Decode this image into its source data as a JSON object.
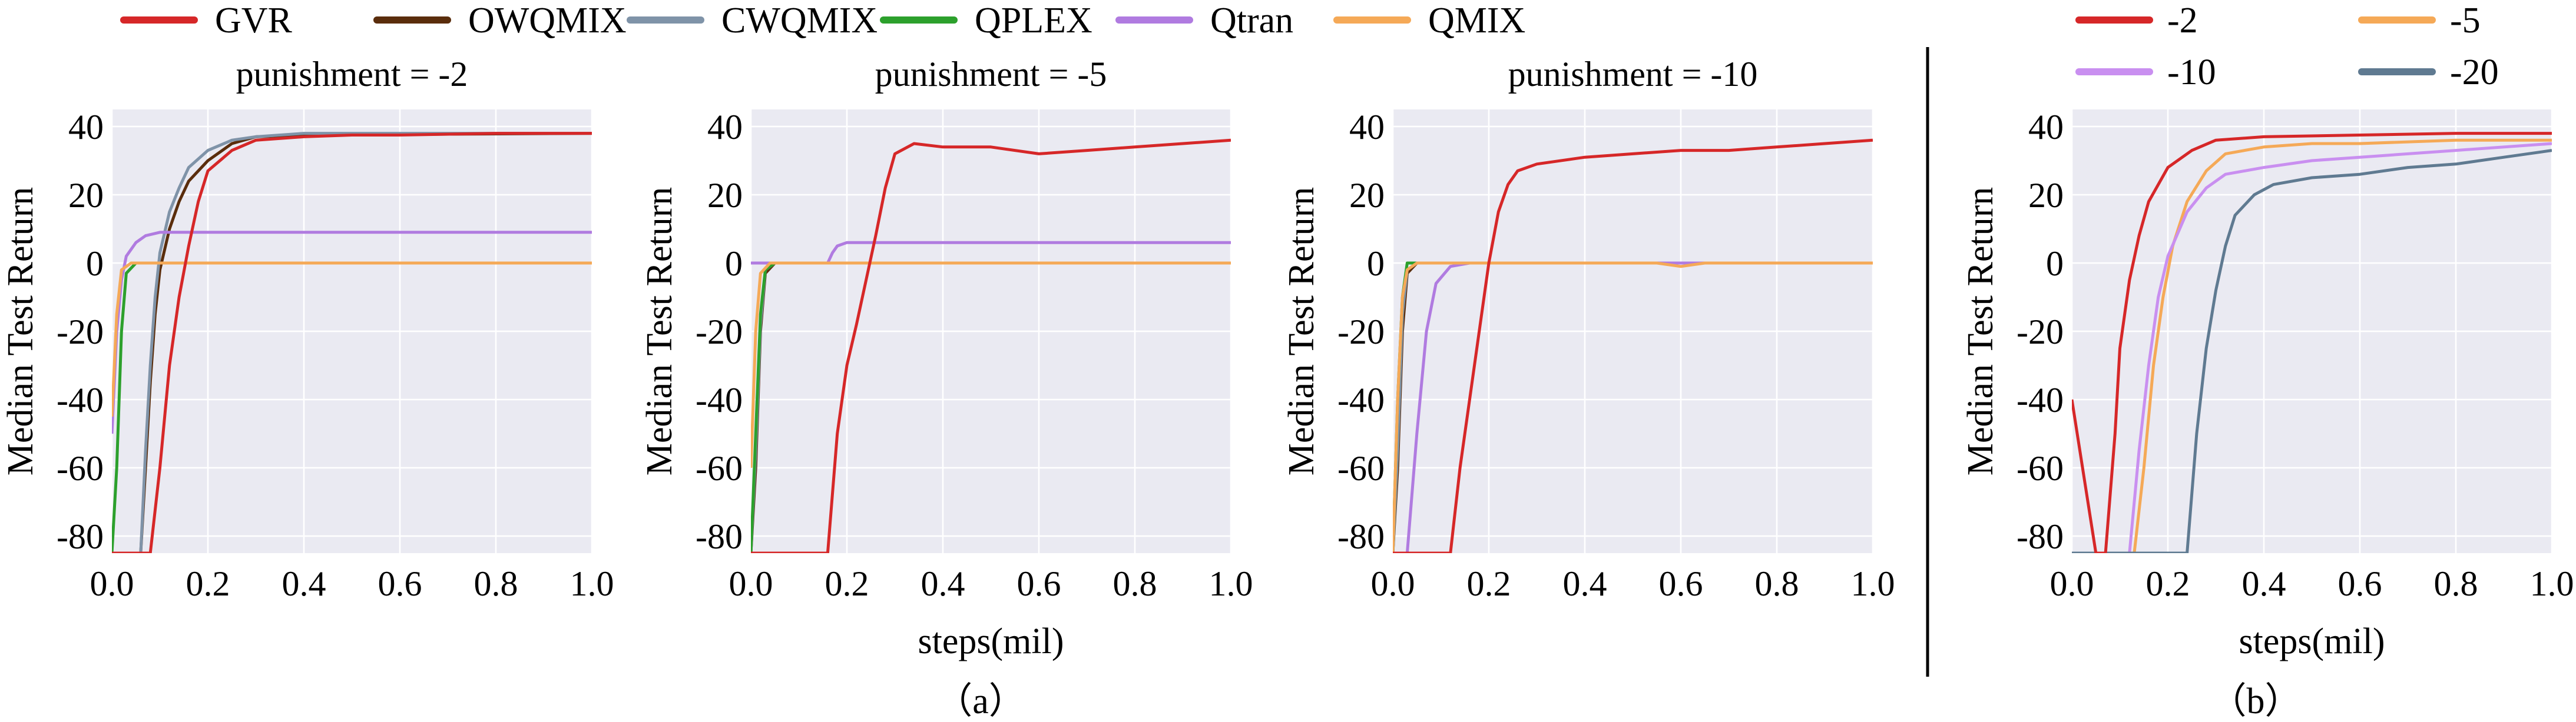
{
  "legend_a": [
    {
      "name": "GVR",
      "color": "#d62728"
    },
    {
      "name": "OWQMIX",
      "color": "#5a2d0c"
    },
    {
      "name": "CWQMIX",
      "color": "#7f93a8"
    },
    {
      "name": "QPLEX",
      "color": "#2ca02c"
    },
    {
      "name": "Qtran",
      "color": "#b07be0"
    },
    {
      "name": "QMIX",
      "color": "#f5a957"
    }
  ],
  "legend_b": [
    {
      "name": "-2",
      "color": "#d62728"
    },
    {
      "name": "-5",
      "color": "#f5a957"
    },
    {
      "name": "-10",
      "color": "#c98ff0"
    },
    {
      "name": "-20",
      "color": "#5f7a91"
    }
  ],
  "captions": {
    "a": "（a）",
    "b": "（b）"
  },
  "chart_data": [
    {
      "type": "line",
      "title": "punishment = -2",
      "xlabel": "",
      "ylabel": "Median Test Return",
      "xlim": [
        0,
        1.0
      ],
      "ylim": [
        -85,
        45
      ],
      "xticks": [
        "0.0",
        "0.2",
        "0.4",
        "0.6",
        "0.8",
        "1.0"
      ],
      "yticks": [
        "-80",
        "-60",
        "-40",
        "-20",
        "0",
        "20",
        "40"
      ],
      "grid": true,
      "series": [
        {
          "name": "GVR",
          "x": [
            0,
            0.08,
            0.1,
            0.12,
            0.14,
            0.16,
            0.18,
            0.2,
            0.25,
            0.3,
            0.4,
            0.5,
            0.6,
            0.8,
            1.0
          ],
          "y": [
            -85,
            -85,
            -60,
            -30,
            -10,
            5,
            18,
            27,
            33,
            36,
            37,
            37.5,
            37.5,
            38,
            38
          ]
        },
        {
          "name": "OWQMIX",
          "x": [
            0,
            0.06,
            0.07,
            0.08,
            0.09,
            0.1,
            0.12,
            0.14,
            0.16,
            0.2,
            0.25,
            0.3,
            0.4,
            1.0
          ],
          "y": [
            -85,
            -85,
            -60,
            -35,
            -15,
            -2,
            10,
            18,
            24,
            30,
            35,
            37,
            37.5,
            38
          ]
        },
        {
          "name": "CWQMIX",
          "x": [
            0,
            0.06,
            0.07,
            0.08,
            0.09,
            0.1,
            0.12,
            0.14,
            0.16,
            0.2,
            0.25,
            0.3,
            0.4,
            1.0
          ],
          "y": [
            -85,
            -85,
            -55,
            -30,
            -10,
            3,
            15,
            22,
            28,
            33,
            36,
            37,
            38,
            38
          ]
        },
        {
          "name": "QPLEX",
          "x": [
            0,
            0.01,
            0.02,
            0.03,
            0.05,
            1.0
          ],
          "y": [
            -85,
            -60,
            -20,
            -3,
            0,
            0
          ]
        },
        {
          "name": "Qtran",
          "x": [
            0,
            0.01,
            0.02,
            0.03,
            0.05,
            0.07,
            0.1,
            1.0
          ],
          "y": [
            -50,
            -20,
            -5,
            2,
            6,
            8,
            9,
            9
          ]
        },
        {
          "name": "QMIX",
          "x": [
            0,
            0.01,
            0.02,
            0.04,
            1.0
          ],
          "y": [
            -45,
            -15,
            -2,
            0,
            0
          ]
        }
      ]
    },
    {
      "type": "line",
      "title": "punishment = -5",
      "xlabel": "steps(mil)",
      "ylabel": "Median Test Return",
      "xlim": [
        0,
        1.0
      ],
      "ylim": [
        -85,
        45
      ],
      "xticks": [
        "0.0",
        "0.2",
        "0.4",
        "0.6",
        "0.8",
        "1.0"
      ],
      "yticks": [
        "-80",
        "-60",
        "-40",
        "-20",
        "0",
        "20",
        "40"
      ],
      "grid": true,
      "series": [
        {
          "name": "GVR",
          "x": [
            0,
            0.16,
            0.18,
            0.2,
            0.22,
            0.24,
            0.26,
            0.28,
            0.3,
            0.34,
            0.4,
            0.5,
            0.6,
            0.7,
            0.8,
            0.9,
            1.0
          ],
          "y": [
            -85,
            -85,
            -50,
            -30,
            -18,
            -5,
            8,
            22,
            32,
            35,
            34,
            34,
            32,
            33,
            34,
            35,
            36
          ]
        },
        {
          "name": "OWQMIX",
          "x": [
            0,
            0.01,
            0.02,
            0.03,
            0.05,
            1.0
          ],
          "y": [
            -85,
            -60,
            -20,
            -3,
            0,
            0
          ]
        },
        {
          "name": "CWQMIX",
          "x": [
            0,
            0.01,
            0.02,
            0.03,
            0.05,
            1.0
          ],
          "y": [
            -85,
            -55,
            -18,
            -2,
            0,
            0
          ]
        },
        {
          "name": "QPLEX",
          "x": [
            0,
            0.01,
            0.02,
            0.03,
            0.05,
            1.0
          ],
          "y": [
            -85,
            -50,
            -15,
            -2,
            0,
            0
          ]
        },
        {
          "name": "Qtran",
          "x": [
            0,
            0.16,
            0.17,
            0.18,
            0.2,
            0.3,
            1.0
          ],
          "y": [
            0,
            0,
            3,
            5,
            6,
            6,
            6
          ]
        },
        {
          "name": "QMIX",
          "x": [
            0,
            0.01,
            0.02,
            0.04,
            1.0
          ],
          "y": [
            -60,
            -20,
            -3,
            0,
            0
          ]
        }
      ]
    },
    {
      "type": "line",
      "title": "punishment = -10",
      "xlabel": "",
      "ylabel": "Median Test Return",
      "xlim": [
        0,
        1.0
      ],
      "ylim": [
        -85,
        45
      ],
      "xticks": [
        "0.0",
        "0.2",
        "0.4",
        "0.6",
        "0.8",
        "1.0"
      ],
      "yticks": [
        "-80",
        "-60",
        "-40",
        "-20",
        "0",
        "20",
        "40"
      ],
      "grid": true,
      "series": [
        {
          "name": "GVR",
          "x": [
            0,
            0.12,
            0.14,
            0.16,
            0.18,
            0.2,
            0.22,
            0.24,
            0.26,
            0.3,
            0.4,
            0.5,
            0.6,
            0.7,
            0.8,
            0.9,
            1.0
          ],
          "y": [
            -85,
            -85,
            -60,
            -40,
            -20,
            0,
            15,
            23,
            27,
            29,
            31,
            32,
            33,
            33,
            34,
            35,
            36
          ]
        },
        {
          "name": "OWQMIX",
          "x": [
            0,
            0.01,
            0.02,
            0.03,
            0.05,
            1.0
          ],
          "y": [
            -85,
            -60,
            -20,
            -3,
            0,
            0
          ]
        },
        {
          "name": "CWQMIX",
          "x": [
            0,
            0.01,
            0.02,
            0.03,
            0.05,
            1.0
          ],
          "y": [
            -85,
            -55,
            -15,
            -2,
            0,
            0
          ]
        },
        {
          "name": "QPLEX",
          "x": [
            0,
            0.01,
            0.02,
            0.03,
            0.05,
            1.0
          ],
          "y": [
            -85,
            -40,
            -10,
            0,
            0,
            0
          ]
        },
        {
          "name": "Qtran",
          "x": [
            0,
            0.03,
            0.05,
            0.07,
            0.09,
            0.12,
            0.16,
            1.0
          ],
          "y": [
            -85,
            -85,
            -50,
            -20,
            -6,
            -1,
            0,
            0
          ]
        },
        {
          "name": "QMIX",
          "x": [
            0,
            0.01,
            0.02,
            0.03,
            0.05,
            0.55,
            0.6,
            0.65,
            1.0
          ],
          "y": [
            -85,
            -40,
            -10,
            -2,
            0,
            0,
            -1,
            0,
            0
          ]
        }
      ]
    },
    {
      "type": "line",
      "title": "",
      "xlabel": "steps(mil)",
      "ylabel": "Median Test Return",
      "xlim": [
        0,
        1.0
      ],
      "ylim": [
        -85,
        45
      ],
      "xticks": [
        "0.0",
        "0.2",
        "0.4",
        "0.6",
        "0.8",
        "1.0"
      ],
      "yticks": [
        "-80",
        "-60",
        "-40",
        "-20",
        "0",
        "20",
        "40"
      ],
      "grid": true,
      "series": [
        {
          "name": "-2",
          "x": [
            0,
            0.05,
            0.07,
            0.09,
            0.1,
            0.12,
            0.14,
            0.16,
            0.2,
            0.25,
            0.3,
            0.4,
            0.6,
            0.8,
            1.0
          ],
          "y": [
            -40,
            -85,
            -85,
            -50,
            -25,
            -5,
            8,
            18,
            28,
            33,
            36,
            37,
            37.5,
            38,
            38
          ]
        },
        {
          "name": "-5",
          "x": [
            0,
            0.13,
            0.15,
            0.17,
            0.19,
            0.21,
            0.24,
            0.28,
            0.32,
            0.4,
            0.5,
            0.6,
            0.8,
            1.0
          ],
          "y": [
            -85,
            -85,
            -60,
            -30,
            -10,
            5,
            18,
            27,
            32,
            34,
            35,
            35,
            36,
            36
          ]
        },
        {
          "name": "-10",
          "x": [
            0,
            0.12,
            0.14,
            0.16,
            0.18,
            0.2,
            0.24,
            0.28,
            0.32,
            0.4,
            0.5,
            0.6,
            0.8,
            1.0
          ],
          "y": [
            -85,
            -85,
            -55,
            -30,
            -10,
            2,
            15,
            22,
            26,
            28,
            30,
            31,
            33,
            35
          ]
        },
        {
          "name": "-20",
          "x": [
            0,
            0.24,
            0.26,
            0.28,
            0.3,
            0.32,
            0.34,
            0.38,
            0.42,
            0.5,
            0.6,
            0.7,
            0.8,
            0.9,
            1.0
          ],
          "y": [
            -85,
            -85,
            -50,
            -25,
            -8,
            5,
            14,
            20,
            23,
            25,
            26,
            28,
            29,
            31,
            33
          ]
        }
      ]
    }
  ]
}
